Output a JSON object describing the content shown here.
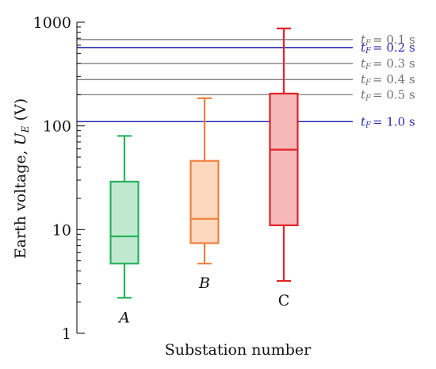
{
  "chart_data": {
    "type": "boxplot",
    "title": "",
    "xlabel": "Substation number",
    "ylabel": {
      "prefix": "Earth voltage, ",
      "symbol": "U",
      "subscript": "E",
      "unit": " (V)"
    },
    "yscale": "log",
    "ylim": [
      1,
      1000
    ],
    "yticks": [
      {
        "value": 1,
        "label": "1"
      },
      {
        "value": 10,
        "label": "10"
      },
      {
        "value": 100,
        "label": "100"
      },
      {
        "value": 1000,
        "label": "1000"
      }
    ],
    "grid": false,
    "boxes": [
      {
        "label": "A",
        "italic": true,
        "label_position": "below",
        "whisker_low": 2.2,
        "q1": 4.7,
        "median": 8.6,
        "q3": 29,
        "whisker_high": 80,
        "stroke": "#27b35a",
        "fill": "#bfe8cf"
      },
      {
        "label": "B",
        "italic": true,
        "label_position": "below",
        "whisker_low": 4.7,
        "q1": 7.4,
        "median": 12.7,
        "q3": 46,
        "whisker_high": 185,
        "stroke": "#f0803c",
        "fill": "#fdd7be"
      },
      {
        "label": "C",
        "italic": false,
        "label_position": "below",
        "whisker_low": 3.2,
        "q1": 11,
        "median": 59,
        "q3": 205,
        "whisker_high": 870,
        "stroke": "#e3222a",
        "fill": "#f6b8b8"
      }
    ],
    "reference_lines": [
      {
        "value": 680,
        "label": "= 0.1 s",
        "color": "#707070"
      },
      {
        "value": 570,
        "label": "= 0.2 s",
        "color": "#2a2ab0"
      },
      {
        "value": 400,
        "label": "= 0.3 s",
        "color": "#707070"
      },
      {
        "value": 280,
        "label": "= 0.4 s",
        "color": "#707070"
      },
      {
        "value": 200,
        "label": "= 0.5 s",
        "color": "#707070"
      },
      {
        "value": 110,
        "label": "= 1.0 s",
        "color": "#2a2ab0"
      }
    ],
    "reference_symbol": "t",
    "reference_subscript": "F"
  }
}
